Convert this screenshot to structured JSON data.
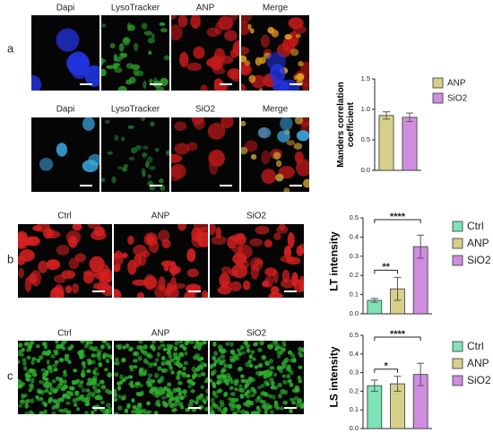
{
  "panel_a": {
    "label": "a",
    "row1": [
      "Dapi",
      "LysoTracker",
      "ANP",
      "Merge"
    ],
    "row2": [
      "Dapi",
      "LysoTracker",
      "SiO2",
      "Merge"
    ]
  },
  "panel_b": {
    "label": "b",
    "columns": [
      "Ctrl",
      "ANP",
      "SiO2"
    ]
  },
  "panel_c": {
    "label": "c",
    "columns": [
      "Ctrl",
      "ANP",
      "SiO2"
    ]
  },
  "chart_data": [
    {
      "type": "bar",
      "ylabel": "Manders correlation coefficient",
      "categories": [
        "ANP",
        "SiO2"
      ],
      "values": [
        0.9,
        0.87
      ],
      "errors": [
        0.06,
        0.07
      ],
      "colors": [
        "#d6d08a",
        "#cf8de0"
      ],
      "ylim": [
        0,
        1.5
      ],
      "yticks": [
        {
          "value": 0,
          "label": "0.0"
        },
        0.5,
        {
          "value": 1,
          "label": "1.0"
        },
        1.5
      ],
      "significance": []
    },
    {
      "type": "bar",
      "ylabel": "LT intensity",
      "categories": [
        "Ctrl",
        "ANP",
        "SiO2"
      ],
      "values": [
        0.07,
        0.13,
        0.35
      ],
      "errors": [
        0.01,
        0.06,
        0.06
      ],
      "colors": [
        "#7fe3b8",
        "#d6d08a",
        "#cf8de0"
      ],
      "ylim": [
        0,
        0.5
      ],
      "yticks": [
        {
          "value": 0,
          "label": "0.0"
        },
        0.1,
        0.2,
        0.3,
        0.4,
        0.5
      ],
      "significance": [
        "**",
        "****"
      ]
    },
    {
      "type": "bar",
      "ylabel": "LS intensity",
      "categories": [
        "Ctrl",
        "ANP",
        "SiO2"
      ],
      "values": [
        0.23,
        0.24,
        0.29
      ],
      "errors": [
        0.03,
        0.04,
        0.06
      ],
      "colors": [
        "#7fe3b8",
        "#d6d08a",
        "#cf8de0"
      ],
      "ylim": [
        0,
        0.5
      ],
      "yticks": [
        {
          "value": 0,
          "label": "0.0"
        },
        0.1,
        0.2,
        0.3,
        0.4,
        0.5
      ],
      "significance": [
        "*",
        "****"
      ]
    }
  ]
}
